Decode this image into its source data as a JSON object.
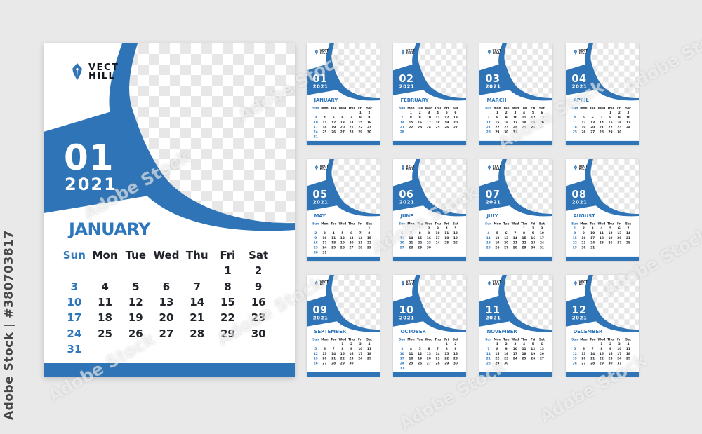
{
  "watermark": {
    "side_text": "Adobe Stock | #380703817",
    "diagonal_text": "Adobe Stock"
  },
  "brand": {
    "name_line1": "VECT",
    "name_line2": "HILL",
    "icon": "pen-nib-icon"
  },
  "year": "2021",
  "weekdays": [
    "Sun",
    "Mon",
    "Tue",
    "Wed",
    "Thu",
    "Fri",
    "Sat"
  ],
  "colors": {
    "accent": "#2e74b6",
    "accent_text": "#2f77bd",
    "dark_text": "#21242b",
    "page_bg": "#e9e9ea",
    "checker": "#e7e7e8"
  },
  "months": [
    {
      "num": "01",
      "name": "JANUARY",
      "weeks": [
        [
          "",
          "",
          "",
          "",
          "",
          "1",
          "2"
        ],
        [
          "3",
          "4",
          "5",
          "6",
          "7",
          "8",
          "9"
        ],
        [
          "10",
          "11",
          "12",
          "13",
          "14",
          "15",
          "16"
        ],
        [
          "17",
          "18",
          "19",
          "20",
          "21",
          "22",
          "23"
        ],
        [
          "24",
          "25",
          "26",
          "27",
          "28",
          "29",
          "30"
        ],
        [
          "31",
          "",
          "",
          "",
          "",
          "",
          ""
        ]
      ]
    },
    {
      "num": "02",
      "name": "FEBRUARY",
      "weeks": [
        [
          "",
          "1",
          "2",
          "3",
          "4",
          "5",
          "6"
        ],
        [
          "7",
          "8",
          "9",
          "10",
          "11",
          "12",
          "13"
        ],
        [
          "14",
          "15",
          "16",
          "17",
          "18",
          "19",
          "20"
        ],
        [
          "21",
          "22",
          "23",
          "24",
          "25",
          "26",
          "27"
        ],
        [
          "28",
          "",
          "",
          "",
          "",
          "",
          ""
        ]
      ]
    },
    {
      "num": "03",
      "name": "MARCH",
      "weeks": [
        [
          "",
          "1",
          "2",
          "3",
          "4",
          "5",
          "6"
        ],
        [
          "7",
          "8",
          "9",
          "10",
          "11",
          "12",
          "13"
        ],
        [
          "14",
          "15",
          "16",
          "17",
          "18",
          "19",
          "20"
        ],
        [
          "21",
          "22",
          "23",
          "24",
          "25",
          "26",
          "27"
        ],
        [
          "28",
          "29",
          "30",
          "31",
          "",
          "",
          ""
        ]
      ]
    },
    {
      "num": "04",
      "name": "APRIL",
      "weeks": [
        [
          "",
          "",
          "",
          "",
          "1",
          "2",
          "3"
        ],
        [
          "4",
          "5",
          "6",
          "7",
          "8",
          "9",
          "10"
        ],
        [
          "11",
          "12",
          "13",
          "14",
          "15",
          "16",
          "17"
        ],
        [
          "18",
          "19",
          "20",
          "21",
          "22",
          "23",
          "24"
        ],
        [
          "25",
          "26",
          "27",
          "28",
          "29",
          "30",
          ""
        ]
      ]
    },
    {
      "num": "05",
      "name": "MAY",
      "weeks": [
        [
          "",
          "",
          "",
          "",
          "",
          "",
          "1"
        ],
        [
          "2",
          "3",
          "4",
          "5",
          "6",
          "7",
          "8"
        ],
        [
          "9",
          "10",
          "11",
          "12",
          "13",
          "14",
          "15"
        ],
        [
          "16",
          "17",
          "18",
          "19",
          "20",
          "21",
          "22"
        ],
        [
          "23",
          "24",
          "25",
          "26",
          "27",
          "28",
          "29"
        ],
        [
          "30",
          "31",
          "",
          "",
          "",
          "",
          ""
        ]
      ]
    },
    {
      "num": "06",
      "name": "JUNE",
      "weeks": [
        [
          "",
          "",
          "1",
          "2",
          "3",
          "4",
          "5"
        ],
        [
          "6",
          "7",
          "8",
          "9",
          "10",
          "11",
          "12"
        ],
        [
          "13",
          "14",
          "15",
          "16",
          "17",
          "18",
          "19"
        ],
        [
          "20",
          "21",
          "22",
          "23",
          "24",
          "25",
          "26"
        ],
        [
          "27",
          "28",
          "29",
          "30",
          "",
          "",
          ""
        ]
      ]
    },
    {
      "num": "07",
      "name": "JULY",
      "weeks": [
        [
          "",
          "",
          "",
          "",
          "1",
          "2",
          "3"
        ],
        [
          "4",
          "5",
          "6",
          "7",
          "8",
          "9",
          "10"
        ],
        [
          "11",
          "12",
          "13",
          "14",
          "15",
          "16",
          "17"
        ],
        [
          "18",
          "19",
          "20",
          "21",
          "22",
          "23",
          "24"
        ],
        [
          "25",
          "26",
          "27",
          "28",
          "29",
          "30",
          "31"
        ]
      ]
    },
    {
      "num": "08",
      "name": "AUGUST",
      "weeks": [
        [
          "1",
          "2",
          "3",
          "4",
          "5",
          "6",
          "7"
        ],
        [
          "8",
          "9",
          "10",
          "11",
          "12",
          "13",
          "14"
        ],
        [
          "15",
          "16",
          "17",
          "18",
          "19",
          "20",
          "21"
        ],
        [
          "22",
          "23",
          "24",
          "25",
          "26",
          "27",
          "28"
        ],
        [
          "29",
          "30",
          "31",
          "",
          "",
          "",
          ""
        ]
      ]
    },
    {
      "num": "09",
      "name": "SEPTEMBER",
      "weeks": [
        [
          "",
          "",
          "",
          "1",
          "2",
          "3",
          "4"
        ],
        [
          "5",
          "6",
          "7",
          "8",
          "9",
          "10",
          "11"
        ],
        [
          "12",
          "13",
          "14",
          "15",
          "16",
          "17",
          "18"
        ],
        [
          "19",
          "20",
          "21",
          "22",
          "23",
          "24",
          "25"
        ],
        [
          "26",
          "27",
          "28",
          "29",
          "30",
          "",
          ""
        ]
      ]
    },
    {
      "num": "10",
      "name": "OCTOBER",
      "weeks": [
        [
          "",
          "",
          "",
          "",
          "",
          "1",
          "2"
        ],
        [
          "3",
          "4",
          "5",
          "6",
          "7",
          "8",
          "9"
        ],
        [
          "10",
          "11",
          "12",
          "13",
          "14",
          "15",
          "16"
        ],
        [
          "17",
          "18",
          "19",
          "20",
          "21",
          "22",
          "23"
        ],
        [
          "24",
          "25",
          "26",
          "27",
          "28",
          "29",
          "30"
        ],
        [
          "31",
          "",
          "",
          "",
          "",
          "",
          ""
        ]
      ]
    },
    {
      "num": "11",
      "name": "NOVEMBER",
      "weeks": [
        [
          "",
          "1",
          "2",
          "3",
          "4",
          "5",
          "6"
        ],
        [
          "7",
          "8",
          "9",
          "10",
          "11",
          "12",
          "13"
        ],
        [
          "14",
          "15",
          "16",
          "17",
          "18",
          "19",
          "20"
        ],
        [
          "21",
          "22",
          "23",
          "24",
          "25",
          "26",
          "27"
        ],
        [
          "28",
          "29",
          "30",
          "",
          "",
          "",
          ""
        ]
      ]
    },
    {
      "num": "12",
      "name": "DECEMBER",
      "weeks": [
        [
          "",
          "",
          "",
          "1",
          "2",
          "3",
          "4"
        ],
        [
          "5",
          "6",
          "7",
          "8",
          "9",
          "10",
          "11"
        ],
        [
          "12",
          "13",
          "14",
          "15",
          "16",
          "17",
          "18"
        ],
        [
          "19",
          "20",
          "21",
          "22",
          "23",
          "24",
          "25"
        ],
        [
          "26",
          "27",
          "28",
          "29",
          "30",
          "31",
          ""
        ]
      ]
    }
  ],
  "layout_note": "2021 wall calendar template set: 1 featured January card and 12 mini month cards"
}
